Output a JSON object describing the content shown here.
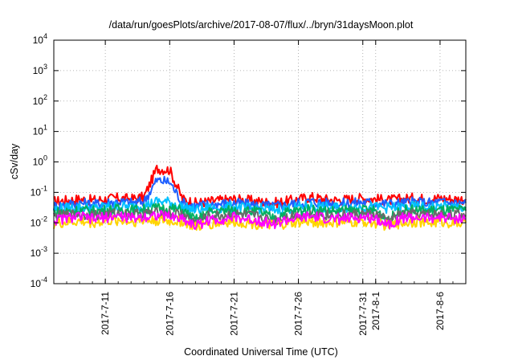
{
  "chart_data": {
    "type": "line",
    "title": "/data/run/goesPlots/archive/2017-08-07/flux/../bryn/31daysMoon.plot",
    "xlabel": "Coordinated Universal Time (UTC)",
    "ylabel": "cSv/day",
    "yscale": "log",
    "ylim": [
      0.0001,
      10000
    ],
    "xlim": [
      "2017-07-07",
      "2017-08-08"
    ],
    "grid": true,
    "y_ticks": [
      {
        "base": "10",
        "exp": "-4",
        "value": 0.0001
      },
      {
        "base": "10",
        "exp": "-3",
        "value": 0.001
      },
      {
        "base": "10",
        "exp": "-2",
        "value": 0.01
      },
      {
        "base": "10",
        "exp": "-1",
        "value": 0.1
      },
      {
        "base": "10",
        "exp": "0",
        "value": 1
      },
      {
        "base": "10",
        "exp": "1",
        "value": 10
      },
      {
        "base": "10",
        "exp": "2",
        "value": 100
      },
      {
        "base": "10",
        "exp": "3",
        "value": 1000
      },
      {
        "base": "10",
        "exp": "4",
        "value": 10000
      }
    ],
    "x_ticks": [
      {
        "label": "2017-7-11",
        "date": "2017-07-11"
      },
      {
        "label": "2017-7-16",
        "date": "2017-07-16"
      },
      {
        "label": "2017-7-21",
        "date": "2017-07-21"
      },
      {
        "label": "2017-7-26",
        "date": "2017-07-26"
      },
      {
        "label": "2017-7-31",
        "date": "2017-07-31"
      },
      {
        "label": "2017-8-1",
        "date": "2017-08-01"
      },
      {
        "label": "2017-8-6",
        "date": "2017-08-06"
      }
    ],
    "x": [
      "2017-07-07",
      "2017-07-08",
      "2017-07-09",
      "2017-07-10",
      "2017-07-11",
      "2017-07-12",
      "2017-07-13",
      "2017-07-14",
      "2017-07-15",
      "2017-07-16",
      "2017-07-17",
      "2017-07-18",
      "2017-07-19",
      "2017-07-20",
      "2017-07-21",
      "2017-07-22",
      "2017-07-23",
      "2017-07-24",
      "2017-07-25",
      "2017-07-26",
      "2017-07-27",
      "2017-07-28",
      "2017-07-29",
      "2017-07-30",
      "2017-07-31",
      "2017-08-01",
      "2017-08-02",
      "2017-08-03",
      "2017-08-04",
      "2017-08-05",
      "2017-08-06",
      "2017-08-07",
      "2017-08-08"
    ],
    "series": [
      {
        "color": "#ff0000",
        "values": [
          0.05,
          0.055,
          0.06,
          0.055,
          0.06,
          0.065,
          0.06,
          0.07,
          0.6,
          0.55,
          0.06,
          0.045,
          0.05,
          0.055,
          0.06,
          0.055,
          0.05,
          0.045,
          0.05,
          0.06,
          0.07,
          0.06,
          0.055,
          0.06,
          0.065,
          0.06,
          0.055,
          0.06,
          0.065,
          0.06,
          0.065,
          0.06,
          0.06
        ]
      },
      {
        "color": "#1f5fff",
        "values": [
          0.035,
          0.04,
          0.045,
          0.04,
          0.045,
          0.05,
          0.045,
          0.05,
          0.25,
          0.22,
          0.045,
          0.035,
          0.04,
          0.042,
          0.045,
          0.04,
          0.038,
          0.035,
          0.038,
          0.045,
          0.05,
          0.045,
          0.042,
          0.045,
          0.048,
          0.045,
          0.042,
          0.045,
          0.048,
          0.045,
          0.048,
          0.045,
          0.045
        ]
      },
      {
        "color": "#00c0ff",
        "values": [
          0.028,
          0.03,
          0.033,
          0.03,
          0.033,
          0.035,
          0.033,
          0.036,
          0.05,
          0.048,
          0.033,
          0.026,
          0.03,
          0.031,
          0.033,
          0.03,
          0.029,
          0.027,
          0.029,
          0.032,
          0.035,
          0.032,
          0.031,
          0.032,
          0.034,
          0.032,
          0.031,
          0.032,
          0.034,
          0.032,
          0.034,
          0.032,
          0.032
        ]
      },
      {
        "color": "#00b060",
        "values": [
          0.022,
          0.024,
          0.026,
          0.024,
          0.026,
          0.028,
          0.026,
          0.028,
          0.03,
          0.029,
          0.026,
          0.012,
          0.022,
          0.024,
          0.026,
          0.024,
          0.023,
          0.014,
          0.022,
          0.025,
          0.027,
          0.025,
          0.024,
          0.025,
          0.026,
          0.025,
          0.013,
          0.025,
          0.026,
          0.025,
          0.026,
          0.025,
          0.025
        ]
      },
      {
        "color": "#6a6a6a",
        "values": [
          0.016,
          0.018,
          0.019,
          0.018,
          0.019,
          0.02,
          0.019,
          0.02,
          0.021,
          0.02,
          0.019,
          0.01,
          0.016,
          0.017,
          0.019,
          0.017,
          0.016,
          0.011,
          0.016,
          0.018,
          0.019,
          0.018,
          0.017,
          0.018,
          0.019,
          0.018,
          0.012,
          0.018,
          0.019,
          0.018,
          0.019,
          0.018,
          0.018
        ]
      },
      {
        "color": "#ffd400",
        "values": [
          0.009,
          0.01,
          0.011,
          0.01,
          0.011,
          0.012,
          0.011,
          0.012,
          0.012,
          0.011,
          0.011,
          0.007,
          0.009,
          0.01,
          0.011,
          0.01,
          0.009,
          0.008,
          0.009,
          0.01,
          0.011,
          0.01,
          0.01,
          0.01,
          0.011,
          0.01,
          0.008,
          0.01,
          0.011,
          0.01,
          0.011,
          0.01,
          0.01
        ]
      },
      {
        "color": "#ff00ff",
        "values": [
          0.012,
          0.014,
          0.016,
          0.013,
          0.015,
          0.017,
          0.014,
          0.016,
          0.018,
          0.016,
          0.014,
          0.008,
          0.012,
          0.013,
          0.015,
          0.013,
          0.012,
          0.009,
          0.012,
          0.014,
          0.016,
          0.014,
          0.013,
          0.014,
          0.015,
          0.014,
          0.009,
          0.014,
          0.015,
          0.014,
          0.015,
          0.014,
          0.014
        ]
      }
    ]
  }
}
